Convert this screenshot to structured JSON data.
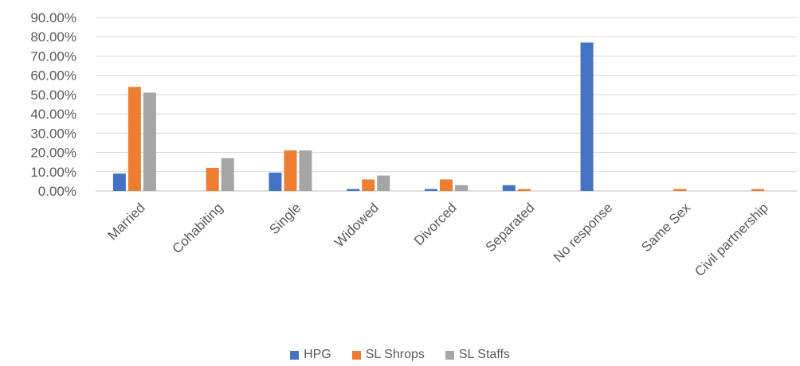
{
  "chart_data": {
    "type": "bar",
    "categories": [
      "Married",
      "Cohabiting",
      "Single",
      "Widowed",
      "Divorced",
      "Separated",
      "No response",
      "Same Sex",
      "Civil partnership"
    ],
    "series": [
      {
        "name": "HPG",
        "color": "#4472C4",
        "values": [
          9.0,
          0.0,
          9.5,
          1.0,
          1.0,
          3.0,
          77.0,
          0.0,
          0.0
        ]
      },
      {
        "name": "SL Shrops",
        "color": "#ED7D31",
        "values": [
          54.0,
          12.0,
          21.0,
          6.0,
          6.0,
          1.0,
          0.0,
          1.0,
          1.0
        ]
      },
      {
        "name": "SL Staffs",
        "color": "#A5A5A5",
        "values": [
          51.0,
          17.0,
          21.0,
          8.0,
          3.0,
          0.0,
          0.0,
          0.0,
          0.0
        ]
      }
    ],
    "yticks": [
      "0.00%",
      "10.00%",
      "20.00%",
      "30.00%",
      "40.00%",
      "50.00%",
      "60.00%",
      "70.00%",
      "80.00%",
      "90.00%"
    ],
    "ylim": [
      0,
      90
    ],
    "grid": true,
    "legend_position": "bottom"
  }
}
